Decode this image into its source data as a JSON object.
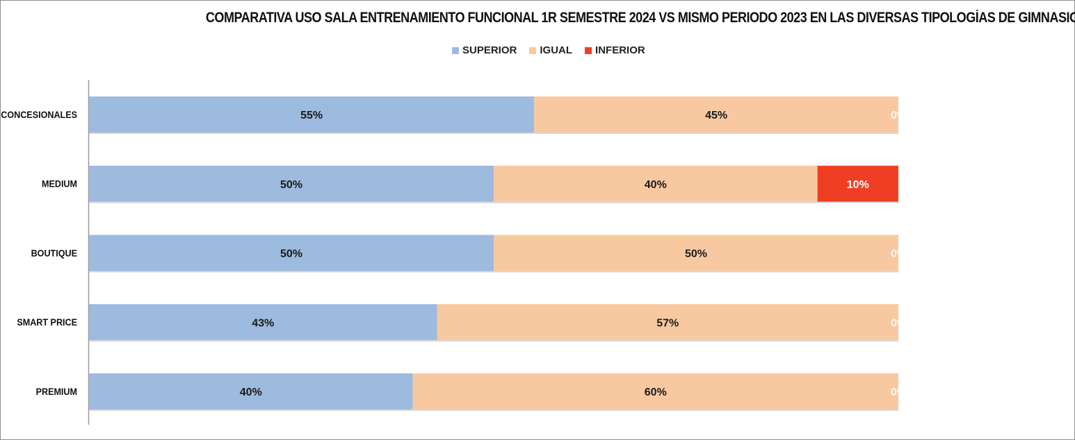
{
  "chart_data": {
    "type": "bar",
    "orientation": "horizontal",
    "stacked": true,
    "title": "COMPARATIVA USO SALA ENTRENAMIENTO FUNCIONAL 1R SEMESTRE 2024 VS MISMO PERIODO 2023 EN LAS DIVERSAS TIPOLOGÍAS DE GIMNASIOS",
    "categories": [
      "CONCESIONALES",
      "MEDIUM",
      "BOUTIQUE",
      "SMART PRICE",
      "PREMIUM"
    ],
    "series": [
      {
        "name": "SUPERIOR",
        "color": "#9dbadf",
        "label_color": "#1a1a1a",
        "values": [
          55,
          50,
          50,
          43,
          40
        ],
        "labels": [
          "55%",
          "50%",
          "50%",
          "43%",
          "40%"
        ]
      },
      {
        "name": "IGUAL",
        "color": "#f8c9a0",
        "label_color": "#1a1a1a",
        "values": [
          45,
          40,
          50,
          57,
          60
        ],
        "labels": [
          "45%",
          "40%",
          "50%",
          "57%",
          "60%"
        ]
      },
      {
        "name": "INFERIOR",
        "color": "#ee3f25",
        "label_color": "#ffffff",
        "values": [
          0,
          10,
          0,
          0,
          0
        ],
        "labels": [
          "0%",
          "10%",
          "0%",
          "0%",
          "0%"
        ]
      }
    ],
    "xlim": [
      0,
      100
    ],
    "xlabel": "",
    "ylabel": "",
    "grid": false,
    "legend": "top-center"
  }
}
